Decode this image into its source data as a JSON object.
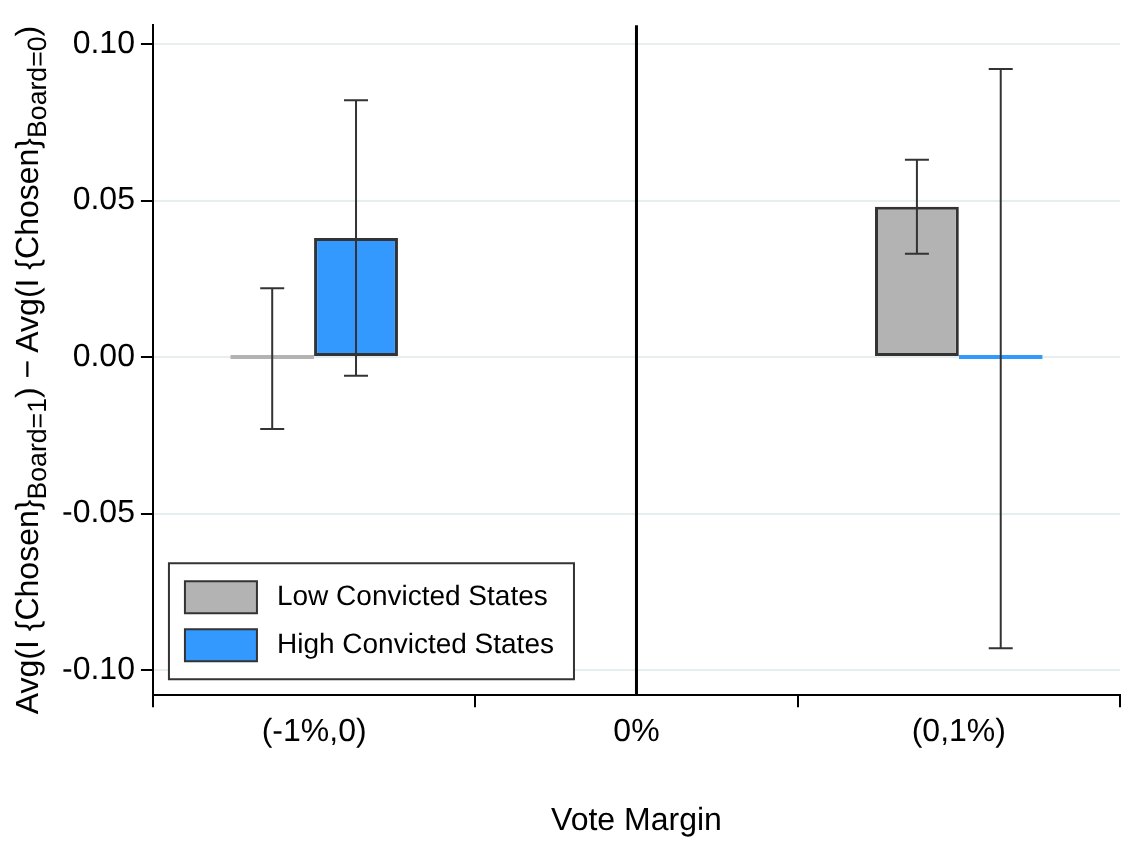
{
  "chart_data": {
    "type": "bar",
    "xlabel": "Vote Margin",
    "ylabel": "Avg(I {Chosen}$_{Board=1}$) − Avg(I {Chosen}$_{Board=0}$)",
    "categories": [
      "(-1%,0)",
      "0%",
      "(0,1%)"
    ],
    "series": [
      {
        "name": "Low Convicted States",
        "color": "#b3b3b3",
        "values": [
          0.0,
          null,
          0.048
        ],
        "errors": [
          [
            -0.023,
            0.022
          ],
          null,
          [
            0.033,
            0.063
          ]
        ]
      },
      {
        "name": "High Convicted States",
        "color": "#3399ff",
        "values": [
          0.038,
          null,
          0.0
        ],
        "errors": [
          [
            -0.006,
            0.082
          ],
          null,
          [
            -0.093,
            0.092
          ]
        ]
      }
    ],
    "ylim": [
      -0.108,
      0.106
    ],
    "yticks": [
      {
        "value": -0.1,
        "label": "-0.10"
      },
      {
        "value": -0.05,
        "label": "-0.05"
      },
      {
        "value": 0,
        "label": "0.00"
      },
      {
        "value": 0.05,
        "label": "0.05"
      },
      {
        "value": 0.1,
        "label": "0.10"
      }
    ],
    "grid": "y",
    "legend": "bottom left",
    "ref_lines": [
      {
        "axis": "x",
        "value": "0%",
        "color": "#000000"
      }
    ]
  }
}
